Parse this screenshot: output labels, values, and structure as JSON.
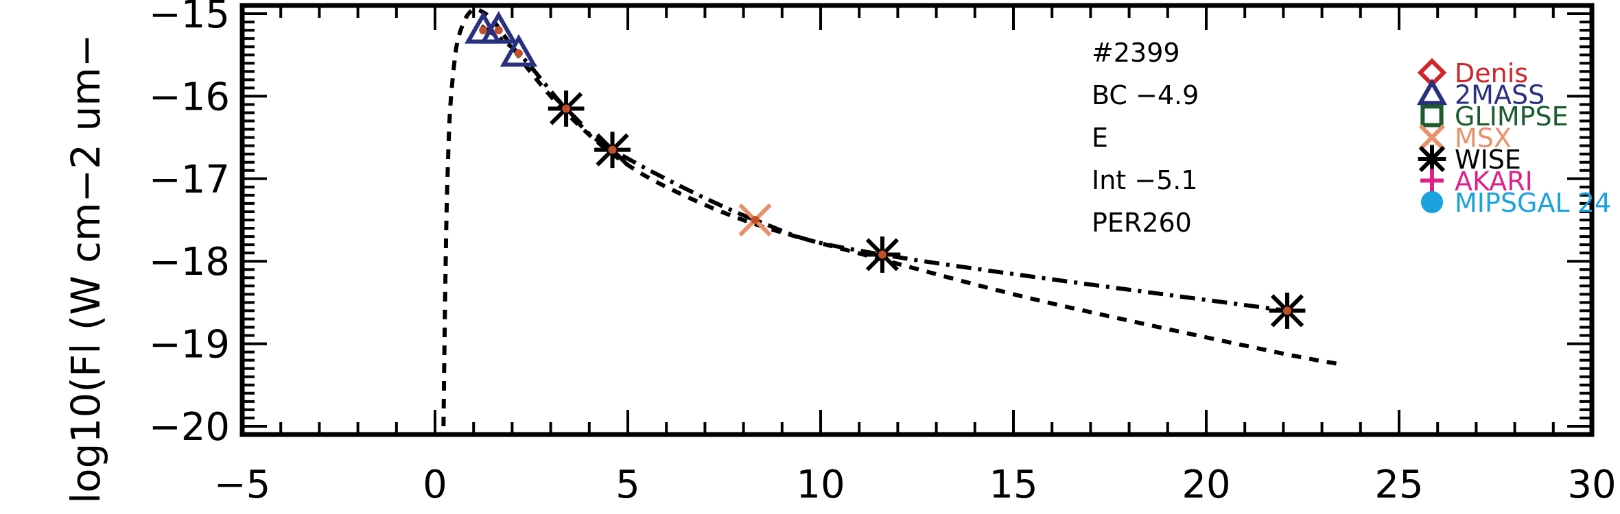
{
  "chart_data": {
    "type": "scatter",
    "ylabel": "log10(Fl (W cm−2 um−",
    "xlim": [
      -5,
      30
    ],
    "ylim": [
      -20.1,
      -14.9
    ],
    "x_ticks": [
      -5,
      0,
      5,
      10,
      15,
      20,
      25,
      30
    ],
    "x_tick_labels": [
      "−5",
      "0",
      "5",
      "10",
      "15",
      "20",
      "25",
      "30"
    ],
    "y_ticks": [
      -15,
      -16,
      -17,
      -18,
      -19,
      -20
    ],
    "y_tick_labels": [
      "−15",
      "−16",
      "−17",
      "−18",
      "−19",
      "−20"
    ],
    "annotations": [
      "#2399",
      "BC −4.9",
      "E",
      "Int −5.1",
      "PER260"
    ],
    "legend": [
      {
        "name": "Denis",
        "marker": "diamond",
        "color": "#d02428"
      },
      {
        "name": "2MASS",
        "marker": "triangle",
        "color": "#283080"
      },
      {
        "name": "GLIMPSE",
        "marker": "square",
        "color": "#1a5c2c"
      },
      {
        "name": "MSX",
        "marker": "x",
        "color": "#e8906a"
      },
      {
        "name": "WISE",
        "marker": "asterisk",
        "color": "#000000"
      },
      {
        "name": "AKARI",
        "marker": "plus",
        "color": "#e0208a"
      },
      {
        "name": "MIPSGAL 24",
        "marker": "circle",
        "color": "#1aa3dc"
      }
    ],
    "legend_position": "right",
    "series": [
      {
        "name": "2MASS",
        "marker": "triangle",
        "color": "#283080",
        "x": [
          1.25,
          1.65,
          2.17
        ],
        "y": [
          -15.2,
          -15.2,
          -15.48
        ]
      },
      {
        "name": "WISE",
        "marker": "asterisk",
        "color": "#000000",
        "x": [
          3.4,
          4.6,
          11.6,
          22.1
        ],
        "y": [
          -16.15,
          -16.65,
          -17.92,
          -18.6
        ]
      },
      {
        "name": "MSX",
        "marker": "x",
        "color": "#e8906a",
        "x": [
          8.3
        ],
        "y": [
          -17.5
        ]
      }
    ],
    "model_curves": [
      {
        "style": "dashed",
        "x": [
          0.22,
          0.24,
          0.27,
          0.3,
          0.35,
          0.4,
          0.5,
          0.6,
          0.8,
          1.0,
          1.2,
          1.5,
          2.0,
          2.5,
          3.4,
          4.6,
          6.0,
          8.3,
          11.6,
          15.0,
          18.0,
          22.0,
          23.5
        ],
        "y": [
          -20.0,
          -19.2,
          -18.2,
          -17.4,
          -16.6,
          -16.1,
          -15.6,
          -15.3,
          -15.05,
          -14.95,
          -14.97,
          -15.08,
          -15.4,
          -15.72,
          -16.2,
          -16.7,
          -17.1,
          -17.55,
          -17.98,
          -18.4,
          -18.72,
          -19.12,
          -19.25
        ]
      },
      {
        "style": "dash-dot",
        "x": [
          1.2,
          2.17,
          3.4,
          4.6,
          8.3,
          11.6,
          22.1
        ],
        "y": [
          -15.15,
          -15.48,
          -16.15,
          -16.65,
          -17.5,
          -17.92,
          -18.6
        ]
      }
    ],
    "grid": false
  }
}
